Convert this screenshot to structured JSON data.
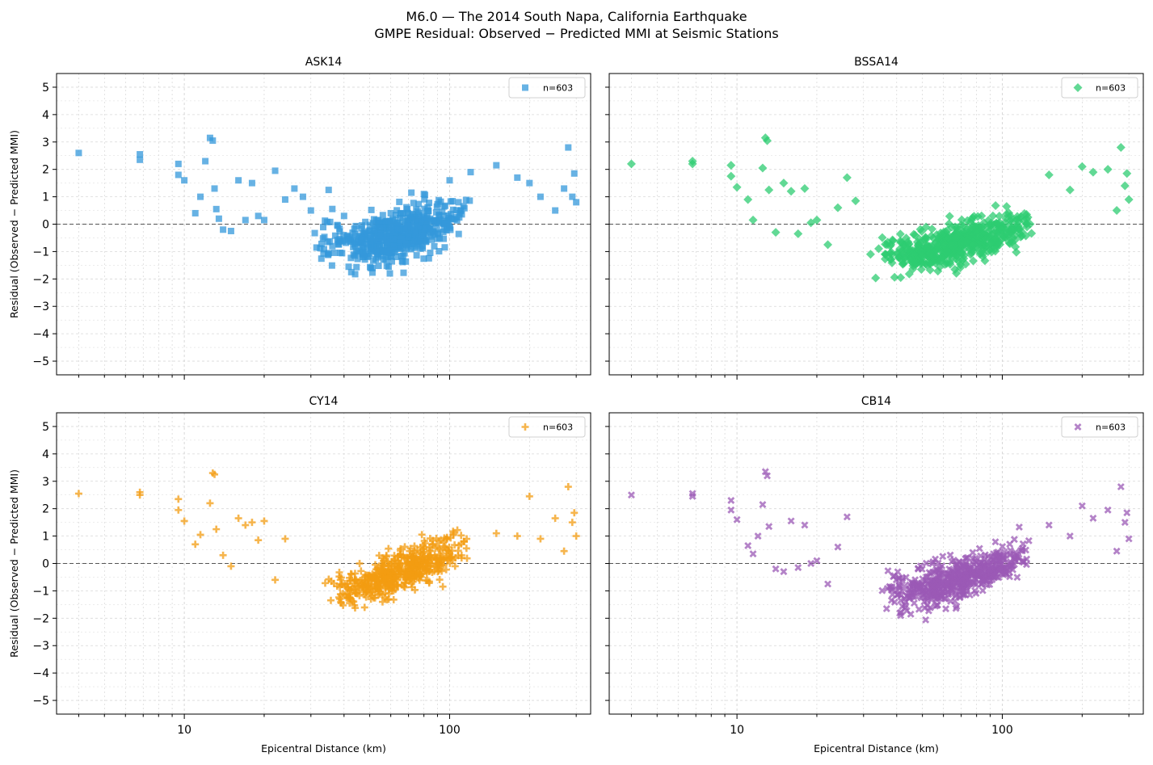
{
  "figure": {
    "title_line1": "M6.0 — The 2014 South Napa, California Earthquake",
    "title_line2": "GMPE Residual: Observed − Predicted MMI at Seismic Stations"
  },
  "chart_data": [
    {
      "type": "scatter",
      "title": "ASK14",
      "xlabel": "",
      "ylabel": "Residual (Observed − Predicted MMI)",
      "x_scale": "log",
      "xlim": [
        3.3,
        340
      ],
      "ylim": [
        -5.5,
        5.5
      ],
      "x_ticks": [
        10,
        100
      ],
      "y_ticks": [
        -5,
        -4,
        -3,
        -2,
        -1,
        0,
        1,
        2,
        3,
        4,
        5
      ],
      "reference_line_y": 0,
      "grid": true,
      "legend": {
        "label": "n=603",
        "position": "top-right"
      },
      "marker": "square",
      "color": "#3498db",
      "series_seed": 11,
      "x": [
        4.0,
        6.8,
        6.8,
        9.5,
        9.5,
        10.0,
        11.0,
        11.5,
        12.0,
        12.5,
        12.8,
        13.0,
        13.2,
        13.5,
        14.0,
        15.0,
        16.0,
        17.0,
        18.0,
        19.0,
        20.0,
        22.0,
        24.0,
        26.0,
        28.0,
        30.0,
        35.0,
        40.0,
        60.0,
        80.0,
        100.0,
        120.0,
        150.0,
        180.0,
        200.0,
        220.0,
        250.0,
        270.0,
        280.0,
        290.0,
        295.0,
        300.0
      ],
      "y": [
        2.6,
        2.55,
        2.35,
        2.2,
        1.8,
        1.6,
        0.4,
        1.0,
        2.3,
        3.15,
        3.05,
        1.3,
        0.55,
        0.2,
        -0.2,
        -0.25,
        1.6,
        0.15,
        1.5,
        0.3,
        0.15,
        1.95,
        0.9,
        1.3,
        1.0,
        0.5,
        1.25,
        0.3,
        0.4,
        1.1,
        1.6,
        1.9,
        2.15,
        1.7,
        1.5,
        1.0,
        0.5,
        1.3,
        2.8,
        1.0,
        1.85,
        0.8
      ],
      "bulk": {
        "count": 561,
        "x_min": 20,
        "x_max": 120,
        "x_peak": 45,
        "trend": "u-shaped",
        "y_at_peak": -0.85,
        "y_at_max": 0.4,
        "spread": 0.45
      }
    },
    {
      "type": "scatter",
      "title": "BSSA14",
      "xlabel": "",
      "ylabel": "",
      "x_scale": "log",
      "xlim": [
        3.3,
        340
      ],
      "ylim": [
        -5.5,
        5.5
      ],
      "x_ticks": [
        10,
        100
      ],
      "y_ticks": [
        -5,
        -4,
        -3,
        -2,
        -1,
        0,
        1,
        2,
        3,
        4,
        5
      ],
      "reference_line_y": 0,
      "grid": true,
      "legend": {
        "label": "n=603",
        "position": "top-right"
      },
      "marker": "diamond",
      "color": "#2ecc71",
      "series_seed": 23,
      "x": [
        4.0,
        6.8,
        6.8,
        9.5,
        9.5,
        10.0,
        11.0,
        11.5,
        12.5,
        12.8,
        13.0,
        13.2,
        14.0,
        15.0,
        16.0,
        17.0,
        18.0,
        19.0,
        20.0,
        22.0,
        24.0,
        26.0,
        28.0,
        150.0,
        180.0,
        200.0,
        220.0,
        250.0,
        270.0,
        280.0,
        290.0,
        295.0,
        300.0
      ],
      "y": [
        2.2,
        2.3,
        2.2,
        2.15,
        1.75,
        1.35,
        0.9,
        0.15,
        2.05,
        3.15,
        3.05,
        1.25,
        -0.3,
        1.5,
        1.2,
        -0.35,
        1.3,
        0.05,
        0.15,
        -0.75,
        0.6,
        1.7,
        0.85,
        1.8,
        1.25,
        2.1,
        1.9,
        2.0,
        0.5,
        2.8,
        1.4,
        1.85,
        0.9
      ],
      "bulk": {
        "count": 570,
        "x_min": 20,
        "x_max": 140,
        "x_peak": 45,
        "trend": "u-shaped",
        "y_at_peak": -1.15,
        "y_at_max": 0.2,
        "spread": 0.35
      }
    },
    {
      "type": "scatter",
      "title": "CY14",
      "xlabel": "Epicentral Distance (km)",
      "ylabel": "Residual (Observed − Predicted MMI)",
      "x_scale": "log",
      "xlim": [
        3.3,
        340
      ],
      "ylim": [
        -5.5,
        5.5
      ],
      "x_ticks": [
        10,
        100
      ],
      "y_ticks": [
        -5,
        -4,
        -3,
        -2,
        -1,
        0,
        1,
        2,
        3,
        4,
        5
      ],
      "reference_line_y": 0,
      "grid": true,
      "legend": {
        "label": "n=603",
        "position": "top-right"
      },
      "marker": "plus",
      "color": "#f39c12",
      "series_seed": 37,
      "x": [
        4.0,
        6.8,
        6.8,
        9.5,
        9.5,
        10.0,
        11.0,
        11.5,
        12.5,
        12.8,
        13.0,
        13.2,
        14.0,
        15.0,
        16.0,
        17.0,
        18.0,
        19.0,
        20.0,
        22.0,
        24.0,
        150.0,
        180.0,
        200.0,
        220.0,
        250.0,
        270.0,
        280.0,
        290.0,
        295.0,
        300.0
      ],
      "y": [
        2.55,
        2.6,
        2.5,
        2.35,
        1.95,
        1.55,
        0.7,
        1.05,
        2.2,
        3.3,
        3.25,
        1.25,
        0.3,
        -0.1,
        1.65,
        1.4,
        1.5,
        0.85,
        1.55,
        -0.6,
        0.9,
        1.1,
        1.0,
        2.45,
        0.9,
        1.65,
        0.45,
        2.8,
        1.5,
        1.85,
        1.0
      ],
      "bulk": {
        "count": 572,
        "x_min": 22,
        "x_max": 120,
        "x_peak": 40,
        "trend": "rising",
        "y_at_peak": -0.95,
        "y_at_max": 0.7,
        "spread": 0.35
      }
    },
    {
      "type": "scatter",
      "title": "CB14",
      "xlabel": "Epicentral Distance (km)",
      "ylabel": "",
      "x_scale": "log",
      "xlim": [
        3.3,
        340
      ],
      "ylim": [
        -5.5,
        5.5
      ],
      "x_ticks": [
        10,
        100
      ],
      "y_ticks": [
        -5,
        -4,
        -3,
        -2,
        -1,
        0,
        1,
        2,
        3,
        4,
        5
      ],
      "reference_line_y": 0,
      "grid": true,
      "legend": {
        "label": "n=603",
        "position": "top-right"
      },
      "marker": "x",
      "color": "#9b59b6",
      "series_seed": 53,
      "x": [
        4.0,
        6.8,
        6.8,
        9.5,
        9.5,
        10.0,
        11.0,
        11.5,
        12.0,
        12.5,
        12.8,
        13.0,
        13.2,
        14.0,
        15.0,
        16.0,
        17.0,
        18.0,
        19.0,
        20.0,
        22.0,
        24.0,
        26.0,
        150.0,
        180.0,
        200.0,
        220.0,
        250.0,
        270.0,
        280.0,
        290.0,
        295.0,
        300.0
      ],
      "y": [
        2.5,
        2.55,
        2.45,
        2.3,
        1.95,
        1.6,
        0.65,
        0.35,
        1.0,
        2.15,
        3.35,
        3.2,
        1.35,
        -0.2,
        -0.3,
        1.55,
        -0.15,
        1.4,
        0.0,
        0.1,
        -0.75,
        0.6,
        1.7,
        1.4,
        1.0,
        2.1,
        1.65,
        1.95,
        0.45,
        2.8,
        1.5,
        1.85,
        0.9
      ],
      "bulk": {
        "count": 570,
        "x_min": 22,
        "x_max": 130,
        "x_peak": 45,
        "trend": "u-shaped",
        "y_at_peak": -1.05,
        "y_at_max": 0.35,
        "spread": 0.4
      }
    }
  ]
}
